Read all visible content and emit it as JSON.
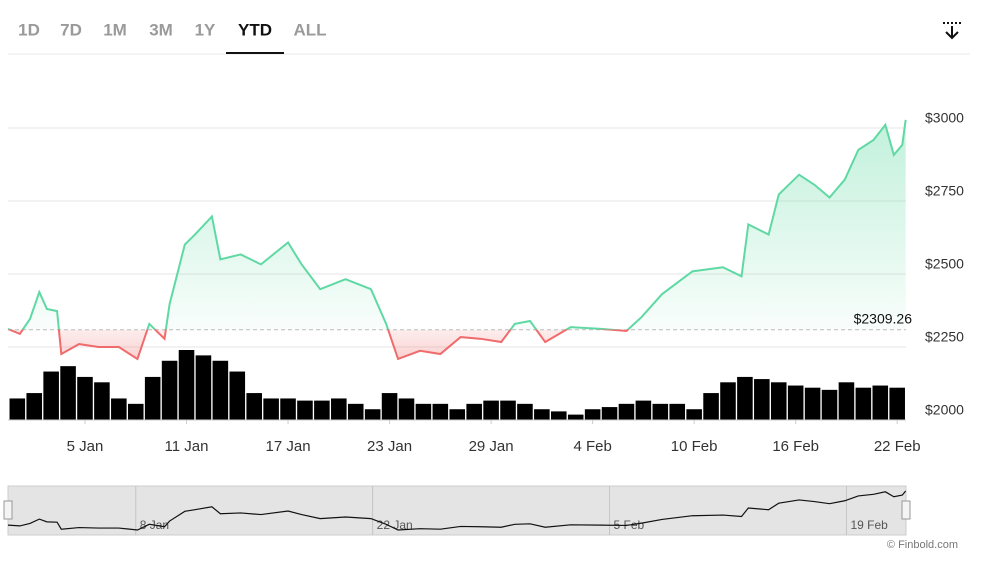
{
  "tabs": [
    "1D",
    "7D",
    "1M",
    "3M",
    "1Y",
    "YTD",
    "ALL"
  ],
  "selected_tab": 5,
  "chart_data": {
    "type": "line",
    "x": [
      0.45,
      1.15,
      1.75,
      2.3,
      2.75,
      3.35,
      3.6,
      4.65,
      5.8,
      7.0,
      8.1,
      8.8,
      9.7,
      10,
      10.9,
      11.5,
      12.5,
      13,
      14.2,
      15.4,
      17,
      17.8,
      18.9,
      20.4,
      21.9,
      22.8,
      23.5,
      24.8,
      26,
      27.2,
      28.4,
      29.6,
      30.4,
      31.3,
      32.2,
      33.7,
      35.5,
      37,
      37.9,
      39.1,
      40.9,
      42.7,
      43.8,
      44.2,
      45.4,
      46,
      47.2,
      48.1,
      49,
      49.9,
      50.7,
      51.6,
      52.3,
      52.8,
      53.3,
      53.5
    ],
    "values": [
      2312,
      2295,
      2346,
      2438,
      2380,
      2373,
      2226,
      2260,
      2250,
      2250,
      2209,
      2329,
      2278,
      2397,
      2601,
      2635,
      2697,
      2550,
      2567,
      2533,
      2608,
      2533,
      2448,
      2482,
      2448,
      2329,
      2209,
      2237,
      2226,
      2284,
      2278,
      2267,
      2329,
      2339,
      2267,
      2318,
      2312,
      2305,
      2353,
      2431,
      2509,
      2523,
      2492,
      2670,
      2635,
      2772,
      2840,
      2806,
      2762,
      2823,
      2925,
      2959,
      3011,
      2908,
      2942,
      3028
    ],
    "color": "#5fd9a3",
    "below_color": "#f06b6b",
    "baseline": {
      "value": 2309.26,
      "label": "$2309.26"
    },
    "volume": {
      "x": [
        1,
        2,
        3,
        4,
        5,
        6,
        7,
        8,
        9,
        10,
        11,
        12,
        13,
        14,
        15,
        16,
        17,
        18,
        19,
        20,
        21,
        22,
        23,
        24,
        25,
        26,
        27,
        28,
        29,
        30,
        31,
        32,
        33,
        34,
        35,
        36,
        37,
        38,
        39,
        40,
        41,
        42,
        43,
        44,
        45,
        46,
        47,
        48,
        49,
        50,
        51,
        52,
        53
      ],
      "values": [
        20,
        25,
        45,
        50,
        40,
        35,
        20,
        15,
        40,
        55,
        65,
        60,
        55,
        45,
        25,
        20,
        20,
        18,
        18,
        20,
        15,
        10,
        25,
        20,
        15,
        15,
        10,
        15,
        18,
        18,
        15,
        10,
        8,
        5,
        10,
        12,
        15,
        18,
        15,
        15,
        10,
        25,
        35,
        40,
        38,
        35,
        32,
        30,
        28,
        35,
        30,
        32,
        30
      ],
      "color": "#000000"
    },
    "xlim": [
      0.45,
      53.52
    ],
    "ylim": [
      2000,
      3250
    ],
    "xticks": [
      {
        "value": 5,
        "label": "5 Jan"
      },
      {
        "value": 11,
        "label": "11 Jan"
      },
      {
        "value": 17,
        "label": "17 Jan"
      },
      {
        "value": 23,
        "label": "23 Jan"
      },
      {
        "value": 29,
        "label": "29 Jan"
      },
      {
        "value": 35,
        "label": "4 Feb"
      },
      {
        "value": 41,
        "label": "10 Feb"
      },
      {
        "value": 47,
        "label": "16 Feb"
      },
      {
        "value": 53,
        "label": "22 Feb"
      }
    ],
    "yticks": [
      {
        "value": 2000,
        "label": "$2000"
      },
      {
        "value": 2250,
        "label": "$2250"
      },
      {
        "value": 2500,
        "label": "$2500"
      },
      {
        "value": 2750,
        "label": "$2750"
      },
      {
        "value": 3000,
        "label": "$3000"
      }
    ],
    "grid": true,
    "navigator_ticks": [
      {
        "value": 8,
        "label": "8 Jan"
      },
      {
        "value": 22,
        "label": "22 Jan"
      },
      {
        "value": 36,
        "label": "5 Feb"
      },
      {
        "value": 50,
        "label": "19 Feb"
      }
    ]
  },
  "credit": "© Finbold.com"
}
